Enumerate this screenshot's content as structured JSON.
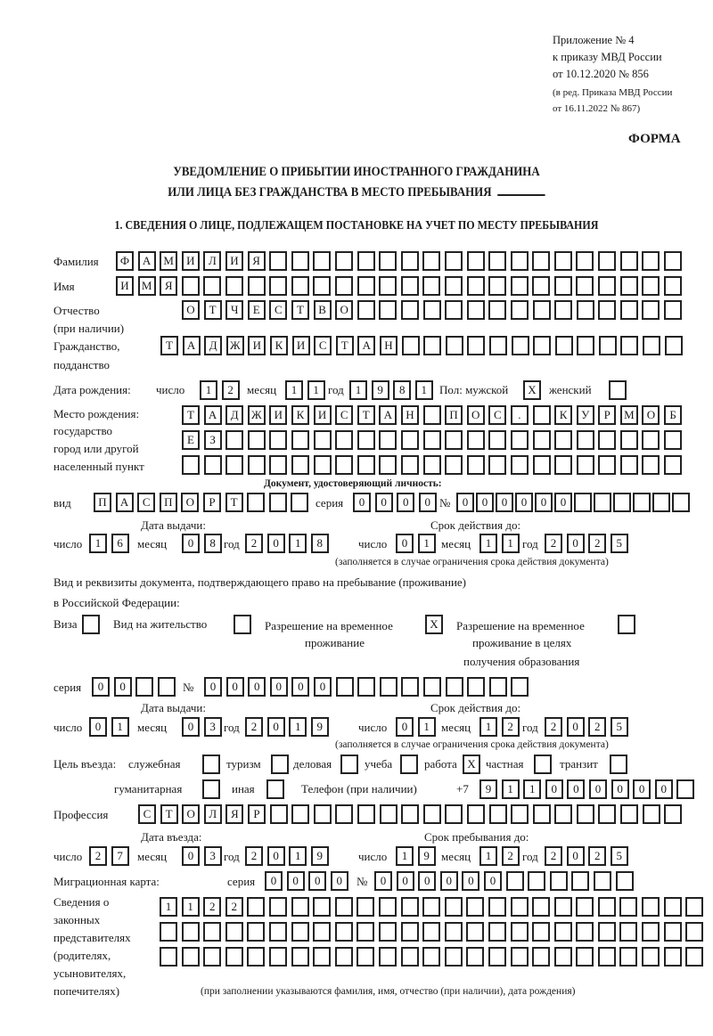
{
  "header": {
    "appendix": [
      "Приложение № 4",
      "к приказу МВД России",
      "от 10.12.2020 № 856"
    ],
    "revision": [
      "(в ред. Приказа МВД России",
      "от 16.11.2022 № 867)"
    ],
    "form_label": "ФОРМА"
  },
  "title": {
    "line1": "УВЕДОМЛЕНИЕ О ПРИБЫТИИ ИНОСТРАННОГО ГРАЖДАНИНА",
    "line2": "ИЛИ ЛИЦА БЕЗ ГРАЖДАНСТВА В МЕСТО ПРЕБЫВАНИЯ"
  },
  "section1": {
    "heading": "1. СВЕДЕНИЯ О ЛИЦЕ, ПОДЛЕЖАЩЕМ ПОСТАНОВКЕ НА УЧЕТ ПО МЕСТУ ПРЕБЫВАНИЯ",
    "surname": {
      "label": "Фамилия",
      "cells": [
        "Ф",
        "А",
        "М",
        "И",
        "Л",
        "И",
        "Я",
        "",
        "",
        "",
        "",
        "",
        "",
        "",
        "",
        "",
        "",
        "",
        "",
        "",
        "",
        "",
        "",
        "",
        "",
        ""
      ]
    },
    "name": {
      "label": "Имя",
      "cells": [
        "И",
        "М",
        "Я",
        "",
        "",
        "",
        "",
        "",
        "",
        "",
        "",
        "",
        "",
        "",
        "",
        "",
        "",
        "",
        "",
        "",
        "",
        "",
        "",
        "",
        "",
        ""
      ]
    },
    "patronymic": {
      "label": "Отчество",
      "sublabel": "(при наличии)",
      "cells": [
        "О",
        "Т",
        "Ч",
        "Е",
        "С",
        "Т",
        "В",
        "О",
        "",
        "",
        "",
        "",
        "",
        "",
        "",
        "",
        "",
        "",
        "",
        "",
        "",
        "",
        ""
      ]
    },
    "citizenship": {
      "label": "Гражданство,",
      "sublabel": "подданство",
      "cells": [
        "Т",
        "А",
        "Д",
        "Ж",
        "И",
        "К",
        "И",
        "С",
        "Т",
        "А",
        "Н",
        "",
        "",
        "",
        "",
        "",
        "",
        "",
        "",
        "",
        "",
        "",
        "",
        ""
      ]
    },
    "birth_date": {
      "label": "Дата рождения:",
      "day_label": "число",
      "day": [
        "1",
        "2"
      ],
      "month_label": "месяц",
      "month": [
        "1",
        "1"
      ],
      "year_label": "год",
      "year": [
        "1",
        "9",
        "8",
        "1"
      ]
    },
    "sex": {
      "label": "Пол: мужской",
      "male": [
        "X"
      ],
      "female_label": "женский",
      "female": [
        ""
      ]
    },
    "birth_place": {
      "labels": [
        "Место рождения:",
        "государство",
        "город или другой",
        "населенный пункт"
      ],
      "rows": [
        [
          "Т",
          "А",
          "Д",
          "Ж",
          "И",
          "К",
          "И",
          "С",
          "Т",
          "А",
          "Н",
          "",
          "П",
          "О",
          "С",
          ".",
          "",
          "К",
          "У",
          "Р",
          "М",
          "О",
          "Б"
        ],
        [
          "Е",
          "З",
          "",
          "",
          "",
          "",
          "",
          "",
          "",
          "",
          "",
          "",
          "",
          "",
          "",
          "",
          "",
          "",
          "",
          "",
          "",
          "",
          ""
        ],
        [
          "",
          "",
          "",
          "",
          "",
          "",
          "",
          "",
          "",
          "",
          "",
          "",
          "",
          "",
          "",
          "",
          "",
          "",
          "",
          "",
          "",
          "",
          ""
        ]
      ]
    },
    "identity_doc": {
      "heading": "Документ, удостоверяющий личность:",
      "type_label": "вид",
      "type": [
        "П",
        "А",
        "С",
        "П",
        "О",
        "Р",
        "Т",
        "",
        "",
        ""
      ],
      "series_label": "серия",
      "series": [
        "0",
        "0",
        "0",
        "0"
      ],
      "number_label": "№",
      "number": [
        "0",
        "0",
        "0",
        "0",
        "0",
        "0",
        "",
        "",
        "",
        "",
        "",
        ""
      ],
      "issue_label": "Дата выдачи:",
      "validity_label": "Срок действия до:",
      "day_label": "число",
      "month_label": "месяц",
      "year_label": "год",
      "issue_day": [
        "1",
        "6"
      ],
      "issue_month": [
        "0",
        "8"
      ],
      "issue_year": [
        "2",
        "0",
        "1",
        "8"
      ],
      "valid_day": [
        "0",
        "1"
      ],
      "valid_month": [
        "1",
        "1"
      ],
      "valid_year": [
        "2",
        "0",
        "2",
        "5"
      ],
      "note": "(заполняется в случае ограничения срока действия документа)"
    },
    "stay_doc": {
      "intro1": "Вид и реквизиты документа, подтверждающего право на пребывание (проживание)",
      "intro2": "в Российской Федерации:",
      "visa_label": "Виза",
      "visa": [
        ""
      ],
      "residence_label": "Вид на жительство",
      "residence": [
        ""
      ],
      "temp_label1": "Разрешение на временное",
      "temp_label2": "проживание",
      "temp": [
        "X"
      ],
      "edu_label1": "Разрешение на временное",
      "edu_label2": "проживание в целях",
      "edu_label3": "получения образования",
      "edu": [
        ""
      ],
      "series_label": "серия",
      "series": [
        "0",
        "0",
        "",
        ""
      ],
      "number_label": "№",
      "number": [
        "0",
        "0",
        "0",
        "0",
        "0",
        "0",
        "",
        "",
        "",
        "",
        "",
        "",
        "",
        "",
        ""
      ],
      "issue_label": "Дата выдачи:",
      "validity_label": "Срок действия до:",
      "day_label": "число",
      "month_label": "месяц",
      "year_label": "год",
      "issue_day": [
        "0",
        "1"
      ],
      "issue_month": [
        "0",
        "3"
      ],
      "issue_year": [
        "2",
        "0",
        "1",
        "9"
      ],
      "valid_day": [
        "0",
        "1"
      ],
      "valid_month": [
        "1",
        "2"
      ],
      "valid_year": [
        "2",
        "0",
        "2",
        "5"
      ],
      "note": "(заполняется в случае ограничения срока действия документа)"
    },
    "purpose": {
      "label": "Цель въезда:",
      "options": [
        {
          "label": "служебная",
          "value": [
            ""
          ]
        },
        {
          "label": "туризм",
          "value": [
            ""
          ]
        },
        {
          "label": "деловая",
          "value": [
            ""
          ]
        },
        {
          "label": "учеба",
          "value": [
            ""
          ]
        },
        {
          "label": "работа",
          "value": [
            "X"
          ]
        },
        {
          "label": "частная",
          "value": [
            ""
          ]
        },
        {
          "label": "транзит",
          "value": [
            ""
          ]
        },
        {
          "label": "гуманитарная",
          "value": [
            ""
          ]
        },
        {
          "label": "иная",
          "value": [
            ""
          ]
        }
      ]
    },
    "phone": {
      "label": "Телефон (при наличии)",
      "prefix": "+7",
      "cells": [
        "9",
        "1",
        "1",
        "0",
        "0",
        "0",
        "0",
        "0",
        "0",
        ""
      ]
    },
    "profession": {
      "label": "Профессия",
      "cells": [
        "С",
        "Т",
        "О",
        "Л",
        "Я",
        "Р",
        "",
        "",
        "",
        "",
        "",
        "",
        "",
        "",
        "",
        "",
        "",
        "",
        "",
        "",
        "",
        "",
        "",
        "",
        ""
      ]
    },
    "entry": {
      "entry_label": "Дата въезда:",
      "stay_label": "Срок пребывания до:",
      "day_label": "число",
      "month_label": "месяц",
      "year_label": "год",
      "entry_day": [
        "2",
        "7"
      ],
      "entry_month": [
        "0",
        "3"
      ],
      "entry_year": [
        "2",
        "0",
        "1",
        "9"
      ],
      "stay_day": [
        "1",
        "9"
      ],
      "stay_month": [
        "1",
        "2"
      ],
      "stay_year": [
        "2",
        "0",
        "2",
        "5"
      ]
    },
    "migration_card": {
      "label": "Миграционная карта:",
      "series_label": "серия",
      "series": [
        "0",
        "0",
        "0",
        "0"
      ],
      "number_label": "№",
      "number": [
        "0",
        "0",
        "0",
        "0",
        "0",
        "0",
        "",
        "",
        "",
        "",
        "",
        ""
      ]
    },
    "representatives": {
      "labels": [
        "Сведения о",
        "законных",
        "представителях",
        "(родителях,",
        "усыновителях,",
        "попечителях)"
      ],
      "rows": [
        [
          "1",
          "1",
          "2",
          "2",
          "",
          "",
          "",
          "",
          "",
          "",
          "",
          "",
          "",
          "",
          "",
          "",
          "",
          "",
          "",
          "",
          "",
          "",
          "",
          "",
          ""
        ],
        [
          "",
          "",
          "",
          "",
          "",
          "",
          "",
          "",
          "",
          "",
          "",
          "",
          "",
          "",
          "",
          "",
          "",
          "",
          "",
          "",
          "",
          "",
          "",
          "",
          ""
        ],
        [
          "",
          "",
          "",
          "",
          "",
          "",
          "",
          "",
          "",
          "",
          "",
          "",
          "",
          "",
          "",
          "",
          "",
          "",
          "",
          "",
          "",
          "",
          "",
          "",
          ""
        ]
      ],
      "note": "(при заполнении указываются фамилия, имя, отчество (при наличии), дата рождения)"
    }
  }
}
